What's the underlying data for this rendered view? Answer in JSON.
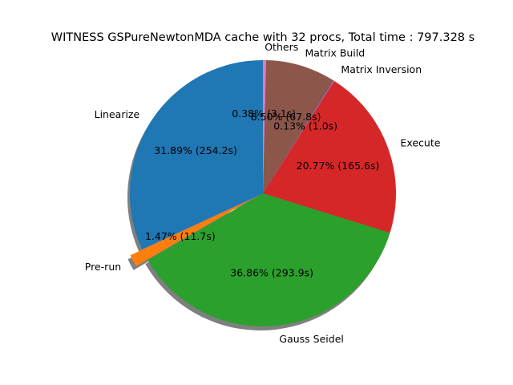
{
  "chart_data": {
    "type": "pie",
    "title": "WITNESS GSPureNewtonMDA cache with 32 procs, Total time : 797.328 s",
    "start_angle_deg": 90,
    "direction": "counterclockwise",
    "shadow": true,
    "exploded": [
      "Pre-run"
    ],
    "slices": [
      {
        "label": "Linearize",
        "value": 254.2,
        "percent": 31.89,
        "pct_text": "31.89%  (254.2s)",
        "color": "#1f77b4"
      },
      {
        "label": "Pre-run",
        "value": 11.7,
        "percent": 1.47,
        "pct_text": "1.47%  (11.7s)",
        "color": "#ff7f0e"
      },
      {
        "label": "Gauss Seidel",
        "value": 293.9,
        "percent": 36.86,
        "pct_text": "36.86%  (293.9s)",
        "color": "#2ca02c"
      },
      {
        "label": "Execute",
        "value": 165.6,
        "percent": 20.77,
        "pct_text": "20.77%  (165.6s)",
        "color": "#d62728"
      },
      {
        "label": "Matrix Inversion",
        "value": 1.0,
        "percent": 0.13,
        "pct_text": "0.13%  (1.0s)",
        "color": "#9467bd"
      },
      {
        "label": "Matrix Build",
        "value": 67.8,
        "percent": 8.5,
        "pct_text": "8.50%  (67.8s)",
        "color": "#8c564b"
      },
      {
        "label": "Others",
        "value": 3.1,
        "percent": 0.38,
        "pct_text": "0.38%  (3.1s)",
        "color": "#e377c2"
      }
    ]
  }
}
